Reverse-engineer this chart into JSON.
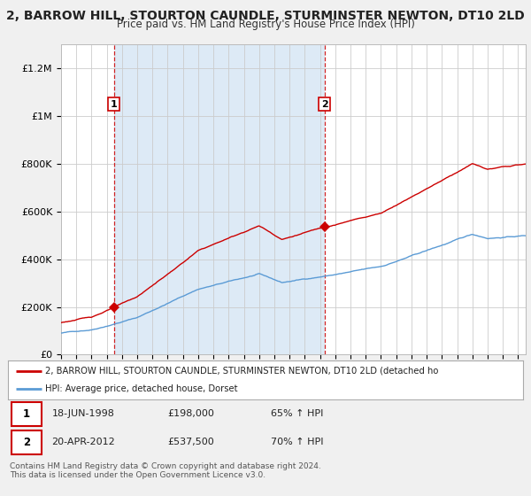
{
  "title": "2, BARROW HILL, STOURTON CAUNDLE, STURMINSTER NEWTON, DT10 2LD",
  "subtitle": "Price paid vs. HM Land Registry's House Price Index (HPI)",
  "title_fontsize": 10,
  "subtitle_fontsize": 8.5,
  "bg_color": "#f0f0f0",
  "plot_bg_color": "#ffffff",
  "hpi_color": "#5b9bd5",
  "hpi_fill_color": "#ddeaf6",
  "price_color": "#cc0000",
  "shading_color": "#ddeaf6",
  "ylim": [
    0,
    1300000
  ],
  "yticks": [
    0,
    200000,
    400000,
    600000,
    800000,
    1000000,
    1200000
  ],
  "ytick_labels": [
    "£0",
    "£200K",
    "£400K",
    "£600K",
    "£800K",
    "£1M",
    "£1.2M"
  ],
  "transaction1_year": 1998.47,
  "transaction1_price": 198000,
  "transaction2_year": 2012.3,
  "transaction2_price": 537500,
  "legend_label_red": "2, BARROW HILL, STOURTON CAUNDLE, STURMINSTER NEWTON, DT10 2LD (detached ho",
  "legend_label_blue": "HPI: Average price, detached house, Dorset",
  "table_row1": [
    "1",
    "18-JUN-1998",
    "£198,000",
    "65% ↑ HPI"
  ],
  "table_row2": [
    "2",
    "20-APR-2012",
    "£537,500",
    "70% ↑ HPI"
  ],
  "footer": "Contains HM Land Registry data © Crown copyright and database right 2024.\nThis data is licensed under the Open Government Licence v3.0.",
  "xmin": 1995.0,
  "xmax": 2025.5,
  "hpi_seed": 42,
  "red_seed": 123
}
